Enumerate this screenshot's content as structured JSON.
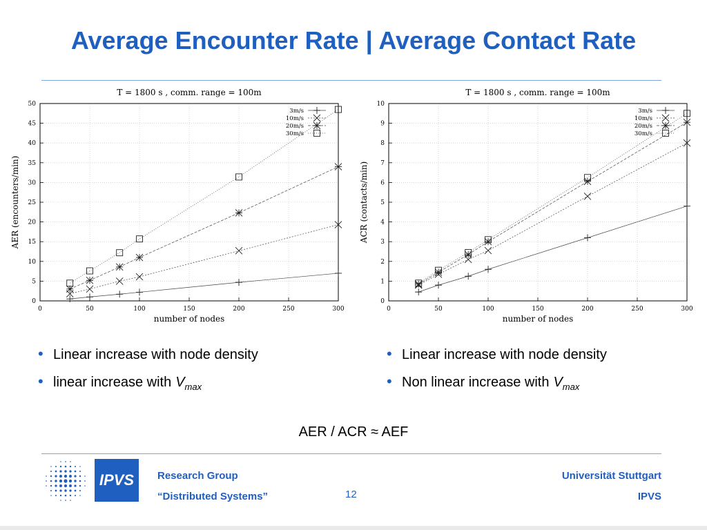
{
  "slide": {
    "title": "Average Encounter Rate | Average Contact Rate",
    "formula": "AER / ACR ≈ AEF",
    "page_number": "12"
  },
  "footer": {
    "left_line1": "Research Group",
    "left_line2": "“Distributed Systems”",
    "right_line1": "Universität Stuttgart",
    "right_line2": "IPVS",
    "logo_text": "IPVS"
  },
  "bullets_left": [
    {
      "text": "Linear increase with node density"
    },
    {
      "text": "linear increase with",
      "v": "V",
      "sub": "max"
    }
  ],
  "bullets_right": [
    {
      "text": "Linear increase with node density"
    },
    {
      "text": "Non linear increase with",
      "v": "V",
      "sub": "max"
    }
  ],
  "colors": {
    "accent": "#1f5fbf",
    "rule": "#7ea6d8"
  },
  "chart_data": [
    {
      "type": "line",
      "title": "T = 1800 s , comm. range = 100m",
      "xlabel": "number of nodes",
      "ylabel": "AER (encounters/min)",
      "xlim": [
        0,
        300
      ],
      "ylim": [
        0,
        50
      ],
      "xticks": [
        0,
        50,
        100,
        150,
        200,
        250,
        300
      ],
      "yticks": [
        0,
        5,
        10,
        15,
        20,
        25,
        30,
        35,
        40,
        45,
        50
      ],
      "grid": true,
      "legend_position": "top-right",
      "series": [
        {
          "name": "3m/s",
          "marker": "plus",
          "x": [
            30,
            50,
            80,
            100,
            200,
            300
          ],
          "y": [
            0.5,
            1.0,
            1.7,
            2.2,
            4.7,
            7.0
          ]
        },
        {
          "name": "10m/s",
          "marker": "x",
          "x": [
            30,
            50,
            80,
            100,
            200,
            300
          ],
          "y": [
            1.8,
            3.0,
            5.0,
            6.1,
            12.7,
            19.3
          ]
        },
        {
          "name": "20m/s",
          "marker": "star",
          "x": [
            30,
            50,
            80,
            100,
            200,
            300
          ],
          "y": [
            3.0,
            5.2,
            8.6,
            11.0,
            22.3,
            34.0
          ]
        },
        {
          "name": "30m/s",
          "marker": "square",
          "x": [
            30,
            50,
            80,
            100,
            200,
            300
          ],
          "y": [
            4.5,
            7.6,
            12.2,
            15.7,
            31.4,
            48.5
          ]
        }
      ]
    },
    {
      "type": "line",
      "title": "T = 1800 s , comm. range = 100m",
      "xlabel": "number of nodes",
      "ylabel": "ACR (contacts/min)",
      "xlim": [
        0,
        300
      ],
      "ylim": [
        0,
        10
      ],
      "xticks": [
        0,
        50,
        100,
        150,
        200,
        250,
        300
      ],
      "yticks": [
        0,
        1,
        2,
        3,
        4,
        5,
        6,
        7,
        8,
        9,
        10
      ],
      "grid": true,
      "legend_position": "top-right",
      "series": [
        {
          "name": "3m/s",
          "marker": "plus",
          "x": [
            30,
            50,
            80,
            100,
            200,
            300
          ],
          "y": [
            0.45,
            0.8,
            1.25,
            1.6,
            3.2,
            4.8
          ]
        },
        {
          "name": "10m/s",
          "marker": "x",
          "x": [
            30,
            50,
            80,
            100,
            200,
            300
          ],
          "y": [
            0.8,
            1.35,
            2.1,
            2.55,
            5.3,
            8.0
          ]
        },
        {
          "name": "20m/s",
          "marker": "star",
          "x": [
            30,
            50,
            80,
            100,
            200,
            300
          ],
          "y": [
            0.85,
            1.45,
            2.35,
            3.0,
            6.05,
            9.05
          ]
        },
        {
          "name": "30m/s",
          "marker": "square",
          "x": [
            30,
            50,
            80,
            100,
            200,
            300
          ],
          "y": [
            0.9,
            1.55,
            2.45,
            3.1,
            6.25,
            9.5
          ]
        }
      ]
    }
  ]
}
